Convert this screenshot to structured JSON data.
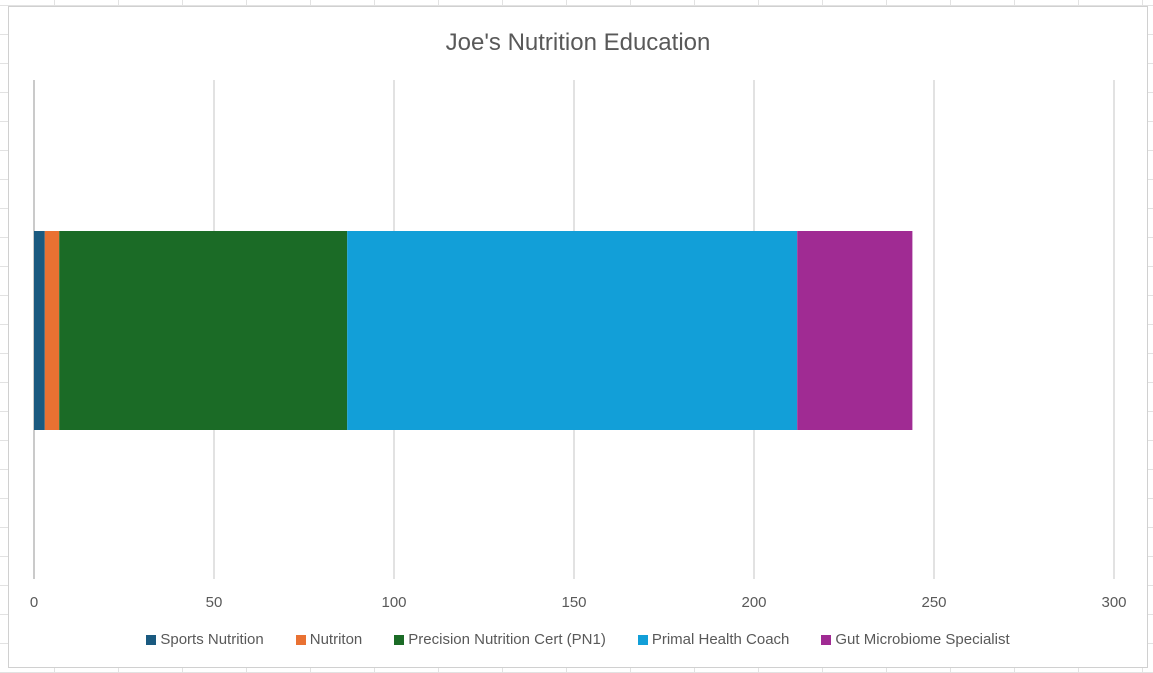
{
  "chart_data": {
    "type": "bar",
    "orientation": "horizontal",
    "stacked": true,
    "title": "Joe's Nutrition Education",
    "xlabel": "",
    "ylabel": "",
    "xlim": [
      0,
      300
    ],
    "x_ticks": [
      0,
      50,
      100,
      150,
      200,
      250,
      300
    ],
    "grid": "vertical",
    "legend_position": "bottom",
    "categories": [
      ""
    ],
    "series": [
      {
        "name": "Sports Nutrition",
        "values": [
          3
        ],
        "color": "#1a5a80"
      },
      {
        "name": "Nutriton",
        "values": [
          4
        ],
        "color": "#e97132"
      },
      {
        "name": "Precision Nutrition Cert (PN1)",
        "values": [
          80
        ],
        "color": "#1b6b26"
      },
      {
        "name": "Primal Health Coach",
        "values": [
          125
        ],
        "color": "#129fd8"
      },
      {
        "name": "Gut Microbiome Specialist",
        "values": [
          32
        ],
        "color": "#a02b93"
      }
    ]
  }
}
